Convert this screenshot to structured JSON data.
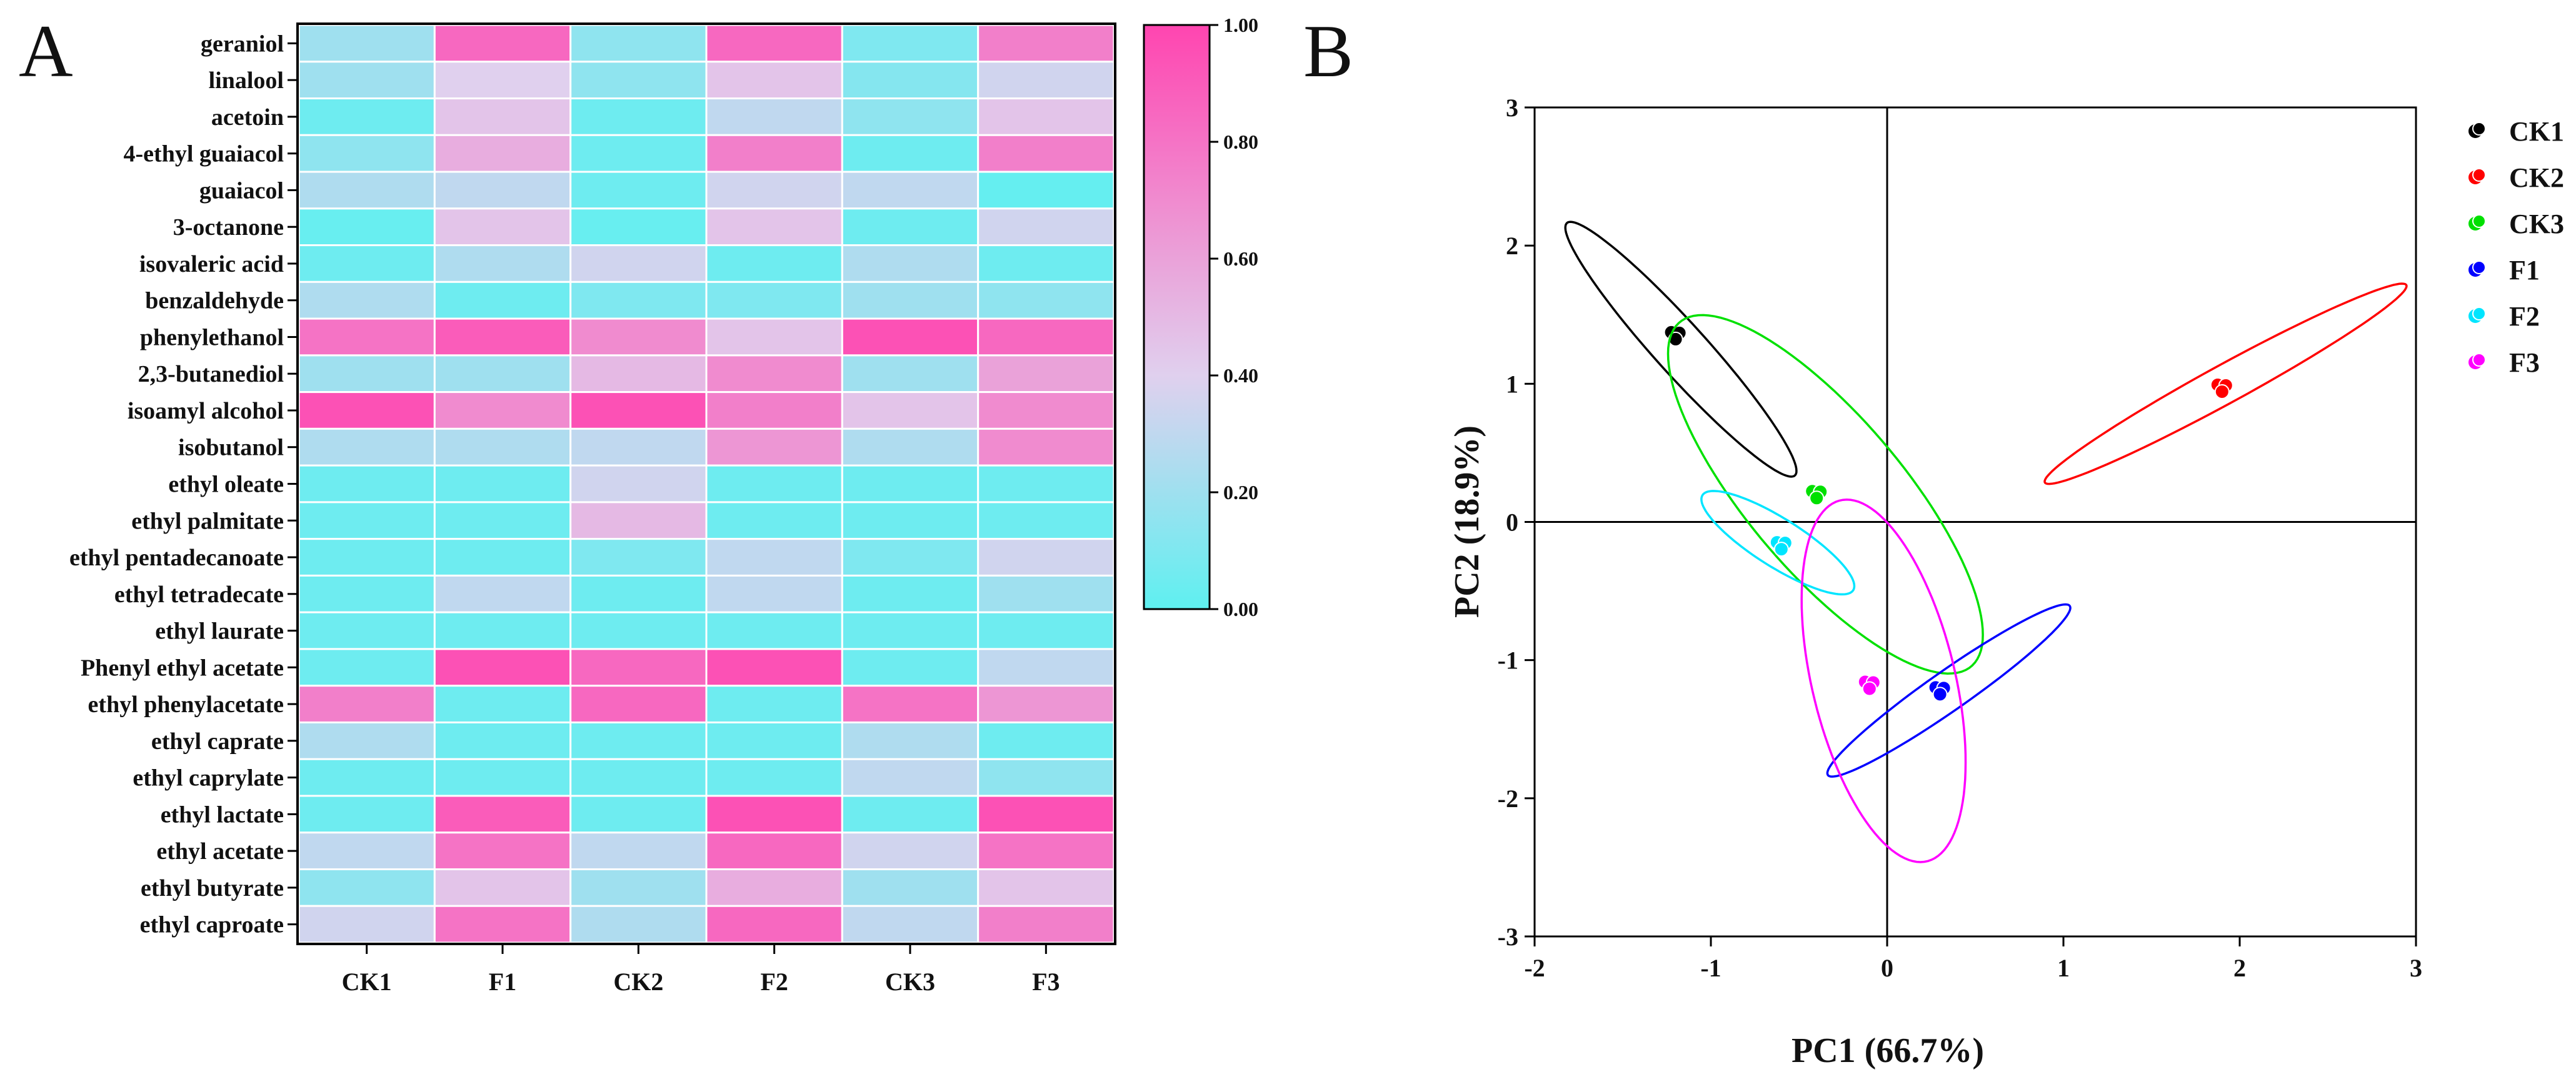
{
  "panels": {
    "heatmap_letter": "A",
    "pca_letter": "B"
  },
  "chart_data": [
    {
      "type": "heatmap",
      "panel": "A",
      "rows": [
        "geraniol",
        "linalool",
        "acetoin",
        "4-ethyl guaiacol",
        "guaiacol",
        "3-octanone",
        "isovaleric acid",
        "benzaldehyde",
        "phenylethanol",
        "2,3-butanediol",
        "isoamyl alcohol",
        "isobutanol",
        "ethyl oleate",
        "ethyl palmitate",
        "ethyl pentadecanoate",
        "ethyl tetradecate",
        "ethyl laurate",
        "Phenyl ethyl acetate",
        "ethyl phenylacetate",
        "ethyl caprate",
        "ethyl caprylate",
        "ethyl lactate",
        "ethyl acetate",
        "ethyl butyrate",
        "ethyl caproate"
      ],
      "columns": [
        "CK1",
        "F1",
        "CK2",
        "F2",
        "CK3",
        "F3"
      ],
      "values": [
        [
          0.2,
          0.85,
          0.15,
          0.85,
          0.1,
          0.75
        ],
        [
          0.2,
          0.4,
          0.15,
          0.45,
          0.12,
          0.35
        ],
        [
          0.05,
          0.45,
          0.05,
          0.3,
          0.15,
          0.45
        ],
        [
          0.15,
          0.55,
          0.05,
          0.75,
          0.05,
          0.75
        ],
        [
          0.25,
          0.3,
          0.05,
          0.35,
          0.3,
          0.02
        ],
        [
          0.03,
          0.45,
          0.03,
          0.45,
          0.05,
          0.35
        ],
        [
          0.05,
          0.25,
          0.35,
          0.05,
          0.25,
          0.05
        ],
        [
          0.25,
          0.05,
          0.1,
          0.1,
          0.2,
          0.15
        ],
        [
          0.8,
          0.9,
          0.7,
          0.45,
          0.95,
          0.85
        ],
        [
          0.2,
          0.2,
          0.5,
          0.7,
          0.2,
          0.6
        ],
        [
          0.95,
          0.7,
          0.95,
          0.75,
          0.45,
          0.7
        ],
        [
          0.25,
          0.25,
          0.3,
          0.65,
          0.25,
          0.7
        ],
        [
          0.05,
          0.05,
          0.35,
          0.05,
          0.05,
          0.05
        ],
        [
          0.05,
          0.05,
          0.5,
          0.05,
          0.05,
          0.05
        ],
        [
          0.05,
          0.05,
          0.1,
          0.3,
          0.1,
          0.35
        ],
        [
          0.05,
          0.3,
          0.05,
          0.3,
          0.05,
          0.2
        ],
        [
          0.05,
          0.05,
          0.05,
          0.05,
          0.05,
          0.05
        ],
        [
          0.05,
          0.95,
          0.85,
          0.95,
          0.05,
          0.3
        ],
        [
          0.75,
          0.05,
          0.85,
          0.05,
          0.8,
          0.65
        ],
        [
          0.25,
          0.05,
          0.05,
          0.05,
          0.25,
          0.05
        ],
        [
          0.05,
          0.05,
          0.05,
          0.05,
          0.3,
          0.15
        ],
        [
          0.05,
          0.9,
          0.05,
          0.95,
          0.05,
          0.95
        ],
        [
          0.3,
          0.8,
          0.3,
          0.85,
          0.35,
          0.8
        ],
        [
          0.15,
          0.45,
          0.2,
          0.55,
          0.2,
          0.45
        ],
        [
          0.35,
          0.8,
          0.25,
          0.85,
          0.3,
          0.75
        ]
      ],
      "colorbar": {
        "min": 0,
        "max": 1,
        "ticks": [
          "0.00",
          "0.20",
          "0.40",
          "0.60",
          "0.80",
          "1.00"
        ],
        "low_color": "#5EF0F0",
        "mid_color": "#E0D0EE",
        "high_color": "#FF45B0"
      }
    },
    {
      "type": "scatter",
      "panel": "B",
      "xlabel": "PC1 (66.7%)",
      "ylabel": "PC2 (18.9%)",
      "xlim": [
        -2,
        3
      ],
      "ylim": [
        -3,
        3
      ],
      "xticks": [
        "-2",
        "-1",
        "0",
        "1",
        "2",
        "3"
      ],
      "yticks": [
        "3",
        "2",
        "1",
        "0",
        "-1",
        "-2",
        "-3"
      ],
      "series": [
        {
          "name": "CK1",
          "color": "#000000",
          "x": -1.2,
          "y": 1.35,
          "ellipse": {
            "cx": -1.17,
            "cy": 1.25,
            "a": 1.12,
            "b": 0.16,
            "angle_deg": -55
          }
        },
        {
          "name": "CK2",
          "color": "#FF0000",
          "x": 1.9,
          "y": 0.97,
          "ellipse": {
            "cx": 1.92,
            "cy": 1.0,
            "a": 1.25,
            "b": 0.13,
            "angle_deg": 35
          }
        },
        {
          "name": "CK3",
          "color": "#00E000",
          "x": -0.4,
          "y": 0.2,
          "ellipse": {
            "cx": -0.35,
            "cy": 0.2,
            "a": 1.5,
            "b": 0.48,
            "angle_deg": -58
          }
        },
        {
          "name": "F1",
          "color": "#0000FF",
          "x": 0.3,
          "y": -1.22,
          "ellipse": {
            "cx": 0.35,
            "cy": -1.22,
            "a": 0.92,
            "b": 0.13,
            "angle_deg": 42
          }
        },
        {
          "name": "F2",
          "color": "#00E5FF",
          "x": -0.6,
          "y": -0.17,
          "ellipse": {
            "cx": -0.62,
            "cy": -0.15,
            "a": 0.55,
            "b": 0.16,
            "angle_deg": -40
          }
        },
        {
          "name": "F3",
          "color": "#FF00FF",
          "x": -0.1,
          "y": -1.18,
          "ellipse": {
            "cx": -0.02,
            "cy": -1.15,
            "a": 1.33,
            "b": 0.41,
            "angle_deg": -80
          }
        }
      ]
    }
  ]
}
